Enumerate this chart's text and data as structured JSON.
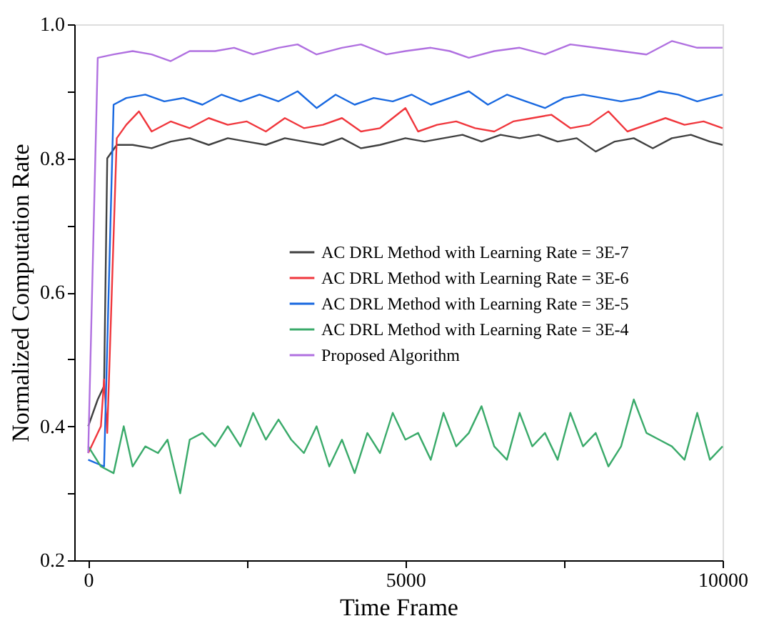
{
  "chart_data": {
    "type": "line",
    "xlabel": "Time Frame",
    "ylabel": "Normalized Computation Rate",
    "xlim": [
      -220,
      10000
    ],
    "ylim": [
      0.2,
      1.0
    ],
    "xticks": [
      0,
      {
        "value": 2500,
        "label": null
      },
      5000,
      {
        "value": 7500,
        "label": null
      },
      10000
    ],
    "yticks": [
      0.2,
      {
        "value": 0.3,
        "label": null
      },
      0.4,
      {
        "value": 0.5,
        "label": null
      },
      0.6,
      {
        "value": 0.7,
        "label": null
      },
      0.8,
      {
        "value": 0.9,
        "label": null
      },
      {
        "value": 1.0,
        "label": "1.0"
      }
    ],
    "grid": false,
    "legend": "right",
    "line_style": "solid",
    "marker": "none",
    "series": [
      {
        "name": "AC DRL Method with Learning Rate = 3E-7",
        "color": "#404040",
        "x": [
          0,
          150,
          250,
          300,
          450,
          700,
          1000,
          1300,
          1600,
          1900,
          2200,
          2500,
          2800,
          3100,
          3400,
          3700,
          4000,
          4300,
          4600,
          5000,
          5300,
          5600,
          5900,
          6200,
          6500,
          6800,
          7100,
          7400,
          7700,
          8000,
          8300,
          8600,
          8900,
          9200,
          9500,
          9800,
          10000
        ],
        "values": [
          0.4,
          0.44,
          0.46,
          0.8,
          0.82,
          0.82,
          0.815,
          0.825,
          0.83,
          0.82,
          0.83,
          0.825,
          0.82,
          0.83,
          0.825,
          0.82,
          0.83,
          0.815,
          0.82,
          0.83,
          0.825,
          0.83,
          0.835,
          0.825,
          0.835,
          0.83,
          0.835,
          0.825,
          0.83,
          0.81,
          0.825,
          0.83,
          0.815,
          0.83,
          0.835,
          0.825,
          0.82
        ]
      },
      {
        "name": "AC DRL Method with Learning Rate = 3E-6",
        "color": "#f0363c",
        "x": [
          0,
          200,
          250,
          300,
          450,
          600,
          800,
          1000,
          1300,
          1600,
          1900,
          2200,
          2500,
          2800,
          3100,
          3400,
          3700,
          4000,
          4300,
          4600,
          5000,
          5200,
          5500,
          5800,
          6100,
          6400,
          6700,
          7000,
          7300,
          7600,
          7900,
          8200,
          8500,
          8800,
          9100,
          9400,
          9700,
          10000
        ],
        "values": [
          0.36,
          0.4,
          0.47,
          0.39,
          0.83,
          0.85,
          0.87,
          0.84,
          0.855,
          0.845,
          0.86,
          0.85,
          0.855,
          0.84,
          0.86,
          0.845,
          0.85,
          0.86,
          0.84,
          0.845,
          0.875,
          0.84,
          0.85,
          0.855,
          0.845,
          0.84,
          0.855,
          0.86,
          0.865,
          0.845,
          0.85,
          0.87,
          0.84,
          0.85,
          0.86,
          0.85,
          0.855,
          0.845
        ]
      },
      {
        "name": "AC DRL Method with Learning Rate = 3E-5",
        "color": "#1868e0",
        "x": [
          0,
          250,
          400,
          600,
          900,
          1200,
          1500,
          1800,
          2100,
          2400,
          2700,
          3000,
          3300,
          3600,
          3900,
          4200,
          4500,
          4800,
          5100,
          5400,
          5700,
          6000,
          6300,
          6600,
          6900,
          7200,
          7500,
          7800,
          8100,
          8400,
          8700,
          9000,
          9300,
          9600,
          10000
        ],
        "values": [
          0.35,
          0.34,
          0.88,
          0.89,
          0.895,
          0.885,
          0.89,
          0.88,
          0.895,
          0.885,
          0.895,
          0.885,
          0.9,
          0.875,
          0.895,
          0.88,
          0.89,
          0.885,
          0.895,
          0.88,
          0.89,
          0.9,
          0.88,
          0.895,
          0.885,
          0.875,
          0.89,
          0.895,
          0.89,
          0.885,
          0.89,
          0.9,
          0.895,
          0.885,
          0.895
        ]
      },
      {
        "name": "AC DRL Method with Learning Rate = 3E-4",
        "color": "#3aaa6a",
        "x": [
          0,
          200,
          400,
          560,
          700,
          900,
          1100,
          1250,
          1450,
          1600,
          1800,
          2000,
          2200,
          2400,
          2600,
          2800,
          3000,
          3200,
          3400,
          3600,
          3800,
          4000,
          4200,
          4400,
          4600,
          4800,
          5000,
          5200,
          5400,
          5600,
          5800,
          6000,
          6200,
          6400,
          6600,
          6800,
          7000,
          7200,
          7400,
          7600,
          7800,
          8000,
          8200,
          8400,
          8600,
          8800,
          9000,
          9200,
          9400,
          9600,
          9800,
          10000
        ],
        "values": [
          0.37,
          0.34,
          0.33,
          0.4,
          0.34,
          0.37,
          0.36,
          0.38,
          0.3,
          0.38,
          0.39,
          0.37,
          0.4,
          0.37,
          0.42,
          0.38,
          0.41,
          0.38,
          0.36,
          0.4,
          0.34,
          0.38,
          0.33,
          0.39,
          0.36,
          0.42,
          0.38,
          0.39,
          0.35,
          0.42,
          0.37,
          0.39,
          0.43,
          0.37,
          0.35,
          0.42,
          0.37,
          0.39,
          0.35,
          0.42,
          0.37,
          0.39,
          0.34,
          0.37,
          0.44,
          0.39,
          0.38,
          0.37,
          0.35,
          0.42,
          0.35,
          0.37
        ]
      },
      {
        "name": "Proposed Algorithm",
        "color": "#b070e0",
        "x": [
          0,
          150,
          400,
          700,
          1000,
          1300,
          1600,
          2000,
          2300,
          2600,
          3000,
          3300,
          3600,
          4000,
          4300,
          4700,
          5000,
          5400,
          5700,
          6000,
          6400,
          6800,
          7200,
          7600,
          8000,
          8400,
          8800,
          9200,
          9600,
          10000
        ],
        "values": [
          0.36,
          0.95,
          0.955,
          0.96,
          0.955,
          0.945,
          0.96,
          0.96,
          0.965,
          0.955,
          0.965,
          0.97,
          0.955,
          0.965,
          0.97,
          0.955,
          0.96,
          0.965,
          0.96,
          0.95,
          0.96,
          0.965,
          0.955,
          0.97,
          0.965,
          0.96,
          0.955,
          0.975,
          0.965,
          0.965
        ]
      }
    ]
  }
}
